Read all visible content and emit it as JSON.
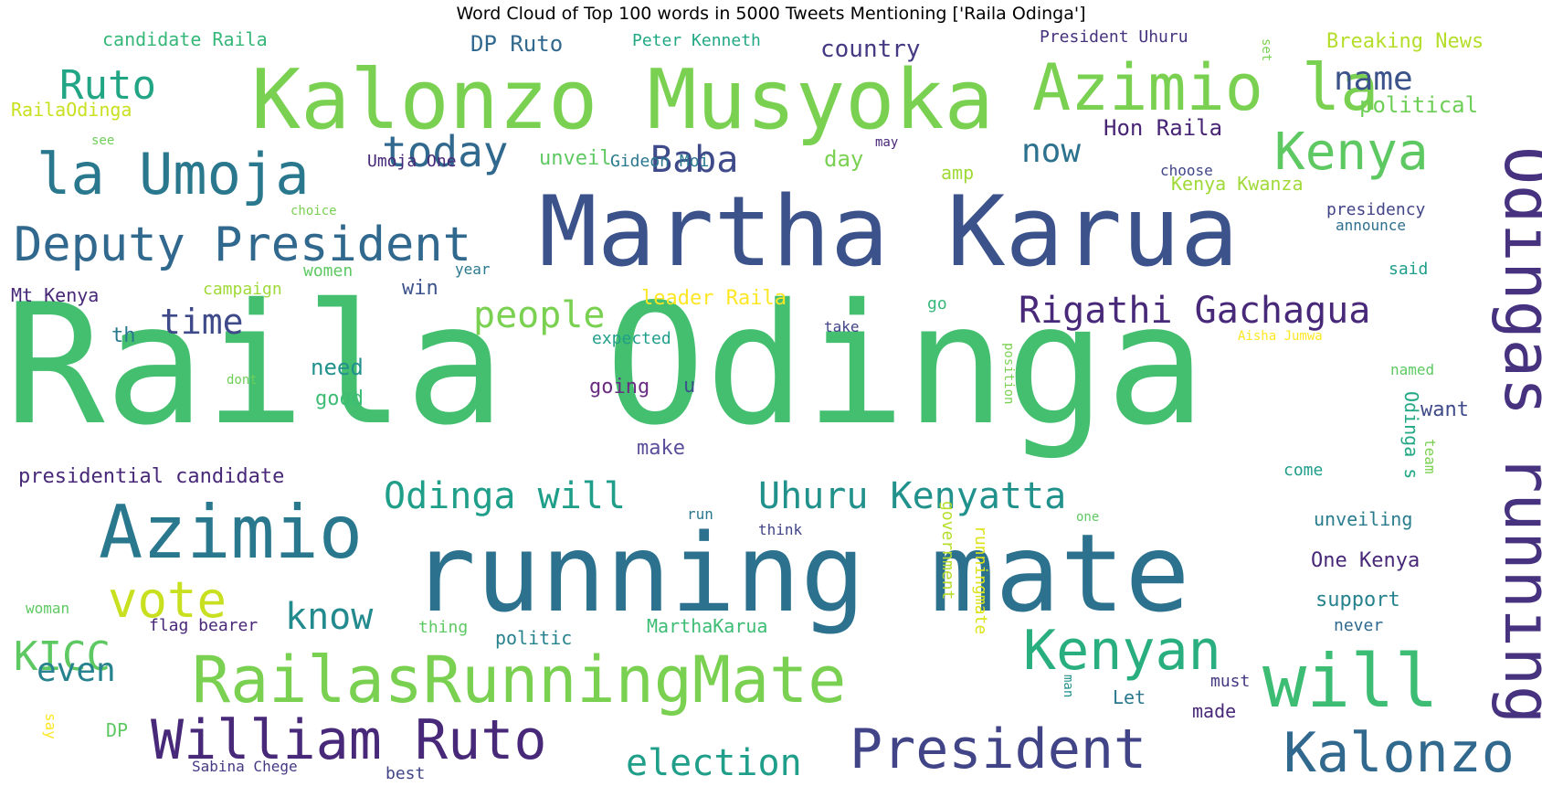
{
  "chart_data": {
    "type": "wordcloud",
    "title": "Word Cloud of Top 100 words in 5000 Tweets Mentioning ['Raila Odinga']",
    "words": [
      {
        "text": "Raila Odinga",
        "color": "#44bf70"
      },
      {
        "text": "running mate",
        "color": "#2c728e"
      },
      {
        "text": "Martha Karua",
        "color": "#3b528b"
      },
      {
        "text": "Kalonzo Musyoka",
        "color": "#7ad151"
      },
      {
        "text": "Azimio la",
        "color": "#7ad151"
      },
      {
        "text": "Azimio",
        "color": "#2a788e"
      },
      {
        "text": "will",
        "color": "#3dbc74"
      },
      {
        "text": "RailasRunningMate",
        "color": "#7ad151"
      },
      {
        "text": "Odingas running",
        "color": "#46327e"
      },
      {
        "text": "la Umoja",
        "color": "#2a788e"
      },
      {
        "text": "Deputy President",
        "color": "#31688e"
      },
      {
        "text": "William Ruto",
        "color": "#482878"
      },
      {
        "text": "President",
        "color": "#414487"
      },
      {
        "text": "Kalonzo",
        "color": "#31688e"
      },
      {
        "text": "Kenyan",
        "color": "#29af7f"
      },
      {
        "text": "Kenya",
        "color": "#5ec962"
      },
      {
        "text": "vote",
        "color": "#c8e020"
      },
      {
        "text": "Uhuru Kenyatta",
        "color": "#21918c"
      },
      {
        "text": "Odinga will",
        "color": "#1f9e89"
      },
      {
        "text": "Rigathi Gachagua",
        "color": "#482878"
      },
      {
        "text": "today",
        "color": "#31688e"
      },
      {
        "text": "Baba",
        "color": "#3e4a89"
      },
      {
        "text": "Ruto",
        "color": "#21a585"
      },
      {
        "text": "people",
        "color": "#7ad151"
      },
      {
        "text": "election",
        "color": "#1f9e89"
      },
      {
        "text": "KICC",
        "color": "#5ec962"
      },
      {
        "text": "know",
        "color": "#238a8d"
      },
      {
        "text": "time",
        "color": "#3e4a89"
      },
      {
        "text": "now",
        "color": "#2c728e"
      },
      {
        "text": "name",
        "color": "#3b528b"
      },
      {
        "text": "even",
        "color": "#26828e"
      },
      {
        "text": "DP Ruto",
        "color": "#31688e"
      },
      {
        "text": "country",
        "color": "#443983"
      },
      {
        "text": "Hon Raila",
        "color": "#482475"
      },
      {
        "text": "political",
        "color": "#6ece58"
      },
      {
        "text": "Breaking News",
        "color": "#b5de2b"
      },
      {
        "text": "President Uhuru",
        "color": "#46327e"
      },
      {
        "text": "Peter Kenneth",
        "color": "#22a884"
      },
      {
        "text": "candidate Raila",
        "color": "#35b779"
      },
      {
        "text": "RailaOdinga",
        "color": "#c8e020"
      },
      {
        "text": "unveil",
        "color": "#5ec962"
      },
      {
        "text": "day",
        "color": "#7ad151"
      },
      {
        "text": "Gideon Moi",
        "color": "#2a788e"
      },
      {
        "text": "Umoja One",
        "color": "#482878"
      },
      {
        "text": "amp",
        "color": "#a0da39"
      },
      {
        "text": "choose",
        "color": "#404688"
      },
      {
        "text": "Kenya Kwanza",
        "color": "#a0da39"
      },
      {
        "text": "presidency",
        "color": "#414487"
      },
      {
        "text": "announce",
        "color": "#2e6e8e"
      },
      {
        "text": "said",
        "color": "#1f9e89"
      },
      {
        "text": "Mt Kenya",
        "color": "#482878"
      },
      {
        "text": "women",
        "color": "#5ec962"
      },
      {
        "text": "year",
        "color": "#2a788e"
      },
      {
        "text": "win",
        "color": "#3b528b"
      },
      {
        "text": "campaign",
        "color": "#a0da39"
      },
      {
        "text": "choice",
        "color": "#7ad151"
      },
      {
        "text": "leader Raila",
        "color": "#fde725"
      },
      {
        "text": "go",
        "color": "#35b779"
      },
      {
        "text": "take",
        "color": "#414487"
      },
      {
        "text": "expected",
        "color": "#1f9e89"
      },
      {
        "text": "Aisha Jumwa",
        "color": "#fde725"
      },
      {
        "text": "named",
        "color": "#5ec962"
      },
      {
        "text": "th",
        "color": "#2a788e"
      },
      {
        "text": "need",
        "color": "#21918c"
      },
      {
        "text": "good",
        "color": "#3dbc74"
      },
      {
        "text": "dont",
        "color": "#6ece58"
      },
      {
        "text": "going",
        "color": "#6a2c82"
      },
      {
        "text": "u",
        "color": "#3b528b"
      },
      {
        "text": "position",
        "color": "#7ad151"
      },
      {
        "text": "want",
        "color": "#3e4a89"
      },
      {
        "text": "Odinga s",
        "color": "#22a884"
      },
      {
        "text": "make",
        "color": "#5a4d9a"
      },
      {
        "text": "presidential candidate",
        "color": "#482878"
      },
      {
        "text": "come",
        "color": "#1f9e89"
      },
      {
        "text": "team",
        "color": "#7ad151"
      },
      {
        "text": "run",
        "color": "#2a788e"
      },
      {
        "text": "think",
        "color": "#414487"
      },
      {
        "text": "one",
        "color": "#5ec962"
      },
      {
        "text": "unveiling",
        "color": "#287c8e"
      },
      {
        "text": "government",
        "color": "#b5de2b"
      },
      {
        "text": "runningmate",
        "color": "#dce319"
      },
      {
        "text": "One Kenya",
        "color": "#482878"
      },
      {
        "text": "support",
        "color": "#26828e"
      },
      {
        "text": "never",
        "color": "#31688e"
      },
      {
        "text": "woman",
        "color": "#5ec962"
      },
      {
        "text": "flag bearer",
        "color": "#482878"
      },
      {
        "text": "thing",
        "color": "#5ec962"
      },
      {
        "text": "politic",
        "color": "#26828e"
      },
      {
        "text": "MarthaKarua",
        "color": "#3dbc74"
      },
      {
        "text": "man",
        "color": "#21918c"
      },
      {
        "text": "must",
        "color": "#443983"
      },
      {
        "text": "Let",
        "color": "#2a788e"
      },
      {
        "text": "made",
        "color": "#482878"
      },
      {
        "text": "DP",
        "color": "#5ec962"
      },
      {
        "text": "say",
        "color": "#fde725"
      },
      {
        "text": "Sabina Chege",
        "color": "#443983"
      },
      {
        "text": "best",
        "color": "#414487"
      },
      {
        "text": "see",
        "color": "#6ece58"
      },
      {
        "text": "may",
        "color": "#482878"
      },
      {
        "text": "set",
        "color": "#7ad151"
      }
    ]
  }
}
